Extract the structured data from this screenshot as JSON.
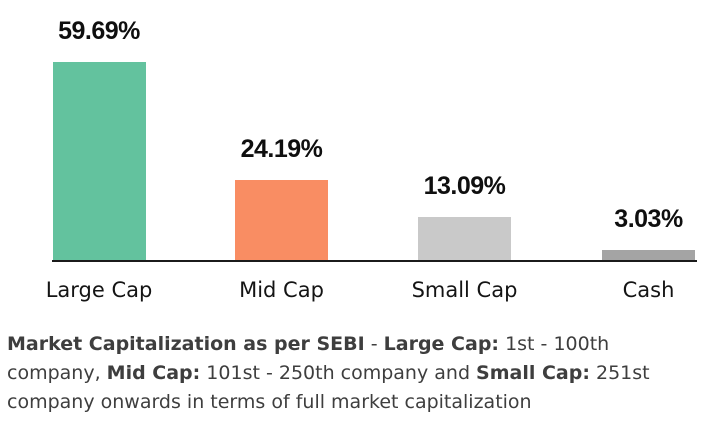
{
  "chart_data": {
    "type": "bar",
    "categories": [
      "Large Cap",
      "Mid Cap",
      "Small Cap",
      "Cash"
    ],
    "values": [
      59.69,
      24.19,
      13.09,
      3.03
    ],
    "value_labels": [
      "59.69%",
      "24.19%",
      "13.09%",
      "3.03%"
    ],
    "bar_colors": [
      "#63c29e",
      "#f98d63",
      "#c9c9c9",
      "#a4a4a4"
    ],
    "title": "",
    "xlabel": "",
    "ylabel": "",
    "ylim": [
      0,
      65
    ],
    "grid": false,
    "legend": "none",
    "axis_color": "#1b1b1b",
    "data_label_color": "#0f0f0f",
    "category_label_color": "#141414"
  },
  "footnote": {
    "text_color": "#3e3e3e",
    "full_text": "Market Capitalization as per SEBI - Large Cap: 1st - 100th company, Mid Cap: 101st - 250th company and Small Cap: 251st company onwards in terms of full market capitalization",
    "lines": [
      [
        {
          "text": "Market Capitalization as per SEBI",
          "bold": true
        },
        {
          "text": " - ",
          "bold": false
        },
        {
          "text": "Large Cap:",
          "bold": true
        },
        {
          "text": " 1st - 100th",
          "bold": false
        }
      ],
      [
        {
          "text": "company, ",
          "bold": false
        },
        {
          "text": "Mid Cap:",
          "bold": true
        },
        {
          "text": " 101st - 250th company and ",
          "bold": false
        },
        {
          "text": "Small Cap:",
          "bold": true
        },
        {
          "text": " 251st",
          "bold": false
        }
      ],
      [
        {
          "text": "company onwards in terms of full market capitalization",
          "bold": false
        }
      ]
    ]
  }
}
